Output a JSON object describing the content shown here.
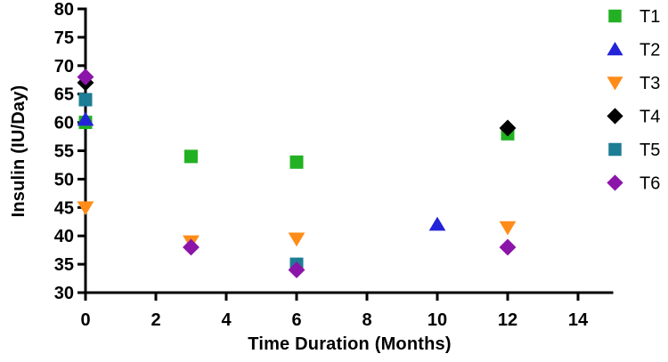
{
  "chart_data": {
    "type": "scatter",
    "title": "",
    "xlabel": "Time Duration (Months)",
    "ylabel": "Insulin (IU/Day)",
    "xlim": [
      0,
      15
    ],
    "ylim": [
      30,
      80
    ],
    "x_ticks": [
      0,
      2,
      4,
      6,
      8,
      10,
      12,
      14
    ],
    "y_ticks": [
      30,
      35,
      40,
      45,
      50,
      55,
      60,
      65,
      70,
      75,
      80
    ],
    "grid": false,
    "legend_position": "right",
    "axis_color": "#000000",
    "series": [
      {
        "name": "T1",
        "marker": "square",
        "color": "#22B122",
        "points": [
          [
            0,
            60
          ],
          [
            3,
            54
          ],
          [
            6,
            53
          ],
          [
            12,
            58
          ]
        ]
      },
      {
        "name": "T2",
        "marker": "triangle-up",
        "color": "#2323D9",
        "points": [
          [
            0,
            60.5
          ],
          [
            10,
            42
          ]
        ]
      },
      {
        "name": "T3",
        "marker": "triangle-down",
        "color": "#FF8C19",
        "points": [
          [
            0,
            45
          ],
          [
            3,
            39
          ],
          [
            6,
            39.5
          ],
          [
            12,
            41.5
          ]
        ]
      },
      {
        "name": "T4",
        "marker": "diamond",
        "color": "#000000",
        "points": [
          [
            0,
            67
          ],
          [
            12,
            59
          ]
        ]
      },
      {
        "name": "T5",
        "marker": "square",
        "color": "#1D7D95",
        "points": [
          [
            0,
            64
          ],
          [
            6,
            35
          ]
        ]
      },
      {
        "name": "T6",
        "marker": "diamond",
        "color": "#8C15A9",
        "points": [
          [
            0,
            68
          ],
          [
            3,
            38
          ],
          [
            6,
            34
          ],
          [
            12,
            38
          ]
        ]
      }
    ]
  }
}
